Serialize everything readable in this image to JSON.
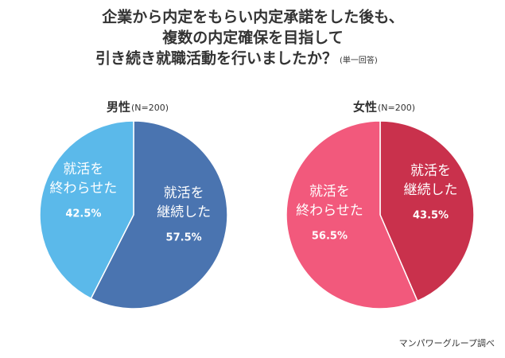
{
  "title": {
    "lines": [
      "企業から内定をもらい内定承諾をした後も、",
      "複数の内定確保を目指して",
      "引き続き就職活動を行いましたか？"
    ],
    "note": "(単一回答)"
  },
  "source": "マンパワーグループ調べ",
  "chart_data": [
    {
      "type": "pie",
      "title": "男性",
      "subtitle": "(N=200)",
      "categories": [
        [
          "就活を",
          "継続した"
        ],
        [
          "就活を",
          "終わらせた"
        ]
      ],
      "values": [
        57.5,
        42.5
      ],
      "value_labels": [
        "57.5%",
        "42.5%"
      ],
      "colors": [
        "#4a74b0",
        "#5bb9ea"
      ]
    },
    {
      "type": "pie",
      "title": "女性",
      "subtitle": "(N=200)",
      "categories": [
        [
          "就活を",
          "継続した"
        ],
        [
          "就活を",
          "終わらせた"
        ]
      ],
      "values": [
        43.5,
        56.5
      ],
      "value_labels": [
        "43.5%",
        "56.5%"
      ],
      "colors": [
        "#c9314c",
        "#f2597c"
      ]
    }
  ]
}
